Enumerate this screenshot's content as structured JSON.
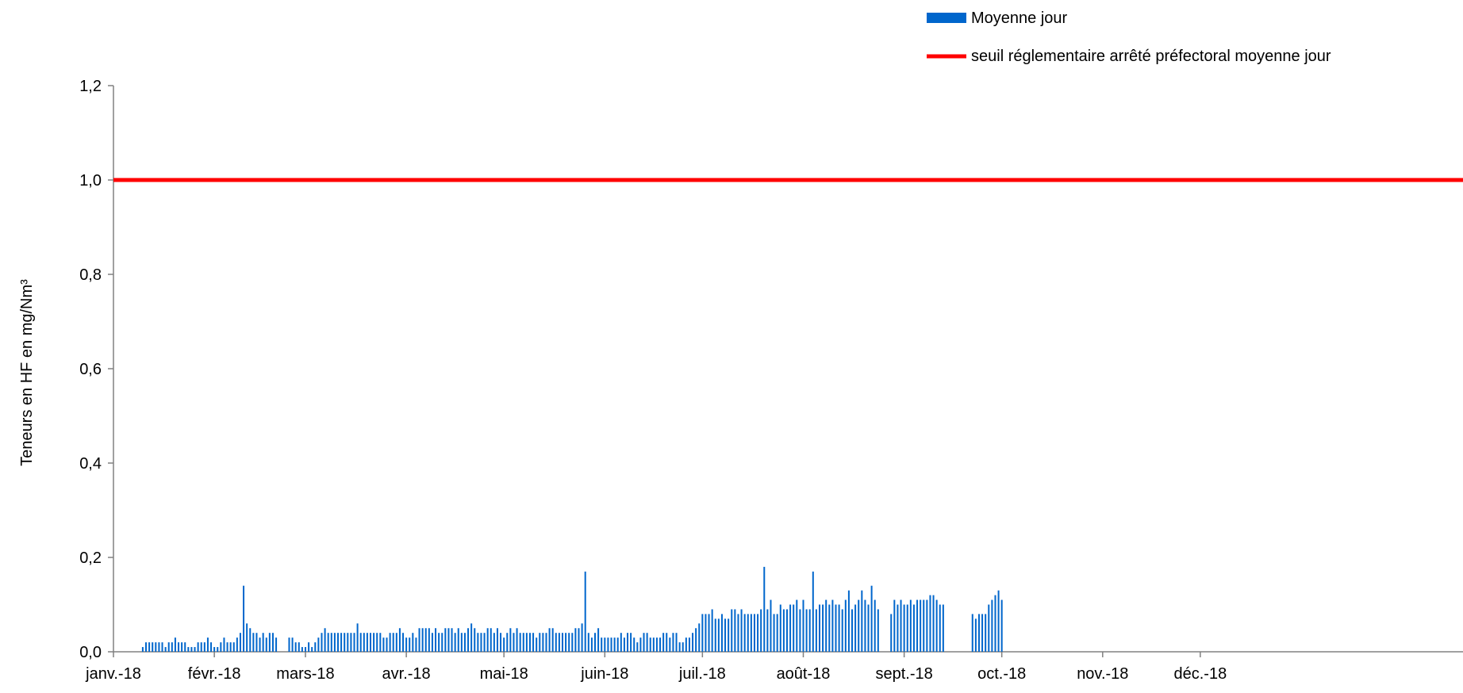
{
  "chart_data": {
    "type": "bar",
    "title": "",
    "xlabel": "",
    "ylabel": "Teneurs en HF en mg/Nm³",
    "ylim": [
      0,
      1.2
    ],
    "yticks": [
      "0,0",
      "0,2",
      "0,4",
      "0,6",
      "0,8",
      "1,0",
      "1,2"
    ],
    "grid": false,
    "legend_position": "top-right",
    "x_start": "2018-01-01",
    "x_end": "2018-12-31",
    "x_tick_labels": [
      {
        "date": "2018-01-01",
        "label": "janv.-18"
      },
      {
        "date": "2018-02-01",
        "label": "févr.-18"
      },
      {
        "date": "2018-03-01",
        "label": "mars-18"
      },
      {
        "date": "2018-04-01",
        "label": "avr.-18"
      },
      {
        "date": "2018-05-01",
        "label": "mai-18"
      },
      {
        "date": "2018-06-01",
        "label": "juin-18"
      },
      {
        "date": "2018-07-01",
        "label": "juil.-18"
      },
      {
        "date": "2018-08-01",
        "label": "août-18"
      },
      {
        "date": "2018-09-01",
        "label": "sept.-18"
      },
      {
        "date": "2018-10-01",
        "label": "oct.-18"
      },
      {
        "date": "2018-11-01",
        "label": "nov.-18"
      },
      {
        "date": "2018-12-01",
        "label": "déc.-18"
      }
    ],
    "series": [
      {
        "name": "Moyenne jour",
        "color": "#0066CC",
        "kind": "bar",
        "points": [
          [
            "2018-01-10",
            0.01
          ],
          [
            "2018-01-11",
            0.02
          ],
          [
            "2018-01-12",
            0.02
          ],
          [
            "2018-01-13",
            0.02
          ],
          [
            "2018-01-14",
            0.02
          ],
          [
            "2018-01-15",
            0.02
          ],
          [
            "2018-01-16",
            0.02
          ],
          [
            "2018-01-17",
            0.01
          ],
          [
            "2018-01-18",
            0.02
          ],
          [
            "2018-01-19",
            0.02
          ],
          [
            "2018-01-20",
            0.03
          ],
          [
            "2018-01-21",
            0.02
          ],
          [
            "2018-01-22",
            0.02
          ],
          [
            "2018-01-23",
            0.02
          ],
          [
            "2018-01-24",
            0.01
          ],
          [
            "2018-01-25",
            0.01
          ],
          [
            "2018-01-26",
            0.01
          ],
          [
            "2018-01-27",
            0.02
          ],
          [
            "2018-01-28",
            0.02
          ],
          [
            "2018-01-29",
            0.02
          ],
          [
            "2018-01-30",
            0.03
          ],
          [
            "2018-01-31",
            0.02
          ],
          [
            "2018-02-01",
            0.01
          ],
          [
            "2018-02-02",
            0.01
          ],
          [
            "2018-02-03",
            0.02
          ],
          [
            "2018-02-04",
            0.03
          ],
          [
            "2018-02-05",
            0.02
          ],
          [
            "2018-02-06",
            0.02
          ],
          [
            "2018-02-07",
            0.02
          ],
          [
            "2018-02-08",
            0.03
          ],
          [
            "2018-02-09",
            0.04
          ],
          [
            "2018-02-10",
            0.14
          ],
          [
            "2018-02-11",
            0.06
          ],
          [
            "2018-02-12",
            0.05
          ],
          [
            "2018-02-13",
            0.04
          ],
          [
            "2018-02-14",
            0.04
          ],
          [
            "2018-02-15",
            0.03
          ],
          [
            "2018-02-16",
            0.04
          ],
          [
            "2018-02-17",
            0.03
          ],
          [
            "2018-02-18",
            0.04
          ],
          [
            "2018-02-19",
            0.04
          ],
          [
            "2018-02-20",
            0.03
          ],
          [
            "2018-02-24",
            0.03
          ],
          [
            "2018-02-25",
            0.03
          ],
          [
            "2018-02-26",
            0.02
          ],
          [
            "2018-02-27",
            0.02
          ],
          [
            "2018-02-28",
            0.01
          ],
          [
            "2018-03-01",
            0.01
          ],
          [
            "2018-03-02",
            0.02
          ],
          [
            "2018-03-03",
            0.01
          ],
          [
            "2018-03-04",
            0.02
          ],
          [
            "2018-03-05",
            0.03
          ],
          [
            "2018-03-06",
            0.04
          ],
          [
            "2018-03-07",
            0.05
          ],
          [
            "2018-03-08",
            0.04
          ],
          [
            "2018-03-09",
            0.04
          ],
          [
            "2018-03-10",
            0.04
          ],
          [
            "2018-03-11",
            0.04
          ],
          [
            "2018-03-12",
            0.04
          ],
          [
            "2018-03-13",
            0.04
          ],
          [
            "2018-03-14",
            0.04
          ],
          [
            "2018-03-15",
            0.04
          ],
          [
            "2018-03-16",
            0.04
          ],
          [
            "2018-03-17",
            0.06
          ],
          [
            "2018-03-18",
            0.04
          ],
          [
            "2018-03-19",
            0.04
          ],
          [
            "2018-03-20",
            0.04
          ],
          [
            "2018-03-21",
            0.04
          ],
          [
            "2018-03-22",
            0.04
          ],
          [
            "2018-03-23",
            0.04
          ],
          [
            "2018-03-24",
            0.04
          ],
          [
            "2018-03-25",
            0.03
          ],
          [
            "2018-03-26",
            0.03
          ],
          [
            "2018-03-27",
            0.04
          ],
          [
            "2018-03-28",
            0.04
          ],
          [
            "2018-03-29",
            0.04
          ],
          [
            "2018-03-30",
            0.05
          ],
          [
            "2018-03-31",
            0.04
          ],
          [
            "2018-04-01",
            0.03
          ],
          [
            "2018-04-02",
            0.03
          ],
          [
            "2018-04-03",
            0.04
          ],
          [
            "2018-04-04",
            0.03
          ],
          [
            "2018-04-05",
            0.05
          ],
          [
            "2018-04-06",
            0.05
          ],
          [
            "2018-04-07",
            0.05
          ],
          [
            "2018-04-08",
            0.05
          ],
          [
            "2018-04-09",
            0.04
          ],
          [
            "2018-04-10",
            0.05
          ],
          [
            "2018-04-11",
            0.04
          ],
          [
            "2018-04-12",
            0.04
          ],
          [
            "2018-04-13",
            0.05
          ],
          [
            "2018-04-14",
            0.05
          ],
          [
            "2018-04-15",
            0.05
          ],
          [
            "2018-04-16",
            0.04
          ],
          [
            "2018-04-17",
            0.05
          ],
          [
            "2018-04-18",
            0.04
          ],
          [
            "2018-04-19",
            0.04
          ],
          [
            "2018-04-20",
            0.05
          ],
          [
            "2018-04-21",
            0.06
          ],
          [
            "2018-04-22",
            0.05
          ],
          [
            "2018-04-23",
            0.04
          ],
          [
            "2018-04-24",
            0.04
          ],
          [
            "2018-04-25",
            0.04
          ],
          [
            "2018-04-26",
            0.05
          ],
          [
            "2018-04-27",
            0.05
          ],
          [
            "2018-04-28",
            0.04
          ],
          [
            "2018-04-29",
            0.05
          ],
          [
            "2018-04-30",
            0.04
          ],
          [
            "2018-05-01",
            0.03
          ],
          [
            "2018-05-02",
            0.04
          ],
          [
            "2018-05-03",
            0.05
          ],
          [
            "2018-05-04",
            0.04
          ],
          [
            "2018-05-05",
            0.05
          ],
          [
            "2018-05-06",
            0.04
          ],
          [
            "2018-05-07",
            0.04
          ],
          [
            "2018-05-08",
            0.04
          ],
          [
            "2018-05-09",
            0.04
          ],
          [
            "2018-05-10",
            0.04
          ],
          [
            "2018-05-11",
            0.03
          ],
          [
            "2018-05-12",
            0.04
          ],
          [
            "2018-05-13",
            0.04
          ],
          [
            "2018-05-14",
            0.04
          ],
          [
            "2018-05-15",
            0.05
          ],
          [
            "2018-05-16",
            0.05
          ],
          [
            "2018-05-17",
            0.04
          ],
          [
            "2018-05-18",
            0.04
          ],
          [
            "2018-05-19",
            0.04
          ],
          [
            "2018-05-20",
            0.04
          ],
          [
            "2018-05-21",
            0.04
          ],
          [
            "2018-05-22",
            0.04
          ],
          [
            "2018-05-23",
            0.05
          ],
          [
            "2018-05-24",
            0.05
          ],
          [
            "2018-05-25",
            0.06
          ],
          [
            "2018-05-26",
            0.17
          ],
          [
            "2018-05-27",
            0.04
          ],
          [
            "2018-05-28",
            0.03
          ],
          [
            "2018-05-29",
            0.04
          ],
          [
            "2018-05-30",
            0.05
          ],
          [
            "2018-05-31",
            0.03
          ],
          [
            "2018-06-01",
            0.03
          ],
          [
            "2018-06-02",
            0.03
          ],
          [
            "2018-06-03",
            0.03
          ],
          [
            "2018-06-04",
            0.03
          ],
          [
            "2018-06-05",
            0.03
          ],
          [
            "2018-06-06",
            0.04
          ],
          [
            "2018-06-07",
            0.03
          ],
          [
            "2018-06-08",
            0.04
          ],
          [
            "2018-06-09",
            0.04
          ],
          [
            "2018-06-10",
            0.03
          ],
          [
            "2018-06-11",
            0.02
          ],
          [
            "2018-06-12",
            0.03
          ],
          [
            "2018-06-13",
            0.04
          ],
          [
            "2018-06-14",
            0.04
          ],
          [
            "2018-06-15",
            0.03
          ],
          [
            "2018-06-16",
            0.03
          ],
          [
            "2018-06-17",
            0.03
          ],
          [
            "2018-06-18",
            0.03
          ],
          [
            "2018-06-19",
            0.04
          ],
          [
            "2018-06-20",
            0.04
          ],
          [
            "2018-06-21",
            0.03
          ],
          [
            "2018-06-22",
            0.04
          ],
          [
            "2018-06-23",
            0.04
          ],
          [
            "2018-06-24",
            0.02
          ],
          [
            "2018-06-25",
            0.02
          ],
          [
            "2018-06-26",
            0.03
          ],
          [
            "2018-06-27",
            0.03
          ],
          [
            "2018-06-28",
            0.04
          ],
          [
            "2018-06-29",
            0.05
          ],
          [
            "2018-06-30",
            0.06
          ],
          [
            "2018-07-01",
            0.08
          ],
          [
            "2018-07-02",
            0.08
          ],
          [
            "2018-07-03",
            0.08
          ],
          [
            "2018-07-04",
            0.09
          ],
          [
            "2018-07-05",
            0.07
          ],
          [
            "2018-07-06",
            0.07
          ],
          [
            "2018-07-07",
            0.08
          ],
          [
            "2018-07-08",
            0.07
          ],
          [
            "2018-07-09",
            0.07
          ],
          [
            "2018-07-10",
            0.09
          ],
          [
            "2018-07-11",
            0.09
          ],
          [
            "2018-07-12",
            0.08
          ],
          [
            "2018-07-13",
            0.09
          ],
          [
            "2018-07-14",
            0.08
          ],
          [
            "2018-07-15",
            0.08
          ],
          [
            "2018-07-16",
            0.08
          ],
          [
            "2018-07-17",
            0.08
          ],
          [
            "2018-07-18",
            0.08
          ],
          [
            "2018-07-19",
            0.09
          ],
          [
            "2018-07-20",
            0.18
          ],
          [
            "2018-07-21",
            0.09
          ],
          [
            "2018-07-22",
            0.11
          ],
          [
            "2018-07-23",
            0.08
          ],
          [
            "2018-07-24",
            0.08
          ],
          [
            "2018-07-25",
            0.1
          ],
          [
            "2018-07-26",
            0.09
          ],
          [
            "2018-07-27",
            0.09
          ],
          [
            "2018-07-28",
            0.1
          ],
          [
            "2018-07-29",
            0.1
          ],
          [
            "2018-07-30",
            0.11
          ],
          [
            "2018-07-31",
            0.09
          ],
          [
            "2018-08-01",
            0.11
          ],
          [
            "2018-08-02",
            0.09
          ],
          [
            "2018-08-03",
            0.09
          ],
          [
            "2018-08-04",
            0.17
          ],
          [
            "2018-08-05",
            0.09
          ],
          [
            "2018-08-06",
            0.1
          ],
          [
            "2018-08-07",
            0.1
          ],
          [
            "2018-08-08",
            0.11
          ],
          [
            "2018-08-09",
            0.1
          ],
          [
            "2018-08-10",
            0.11
          ],
          [
            "2018-08-11",
            0.1
          ],
          [
            "2018-08-12",
            0.1
          ],
          [
            "2018-08-13",
            0.09
          ],
          [
            "2018-08-14",
            0.11
          ],
          [
            "2018-08-15",
            0.13
          ],
          [
            "2018-08-16",
            0.09
          ],
          [
            "2018-08-17",
            0.1
          ],
          [
            "2018-08-18",
            0.11
          ],
          [
            "2018-08-19",
            0.13
          ],
          [
            "2018-08-20",
            0.11
          ],
          [
            "2018-08-21",
            0.1
          ],
          [
            "2018-08-22",
            0.14
          ],
          [
            "2018-08-23",
            0.11
          ],
          [
            "2018-08-24",
            0.09
          ],
          [
            "2018-08-28",
            0.08
          ],
          [
            "2018-08-29",
            0.11
          ],
          [
            "2018-08-30",
            0.1
          ],
          [
            "2018-08-31",
            0.11
          ],
          [
            "2018-09-01",
            0.1
          ],
          [
            "2018-09-02",
            0.1
          ],
          [
            "2018-09-03",
            0.11
          ],
          [
            "2018-09-04",
            0.1
          ],
          [
            "2018-09-05",
            0.11
          ],
          [
            "2018-09-06",
            0.11
          ],
          [
            "2018-09-07",
            0.11
          ],
          [
            "2018-09-08",
            0.11
          ],
          [
            "2018-09-09",
            0.12
          ],
          [
            "2018-09-10",
            0.12
          ],
          [
            "2018-09-11",
            0.11
          ],
          [
            "2018-09-12",
            0.1
          ],
          [
            "2018-09-13",
            0.1
          ],
          [
            "2018-09-22",
            0.08
          ],
          [
            "2018-09-23",
            0.07
          ],
          [
            "2018-09-24",
            0.08
          ],
          [
            "2018-09-25",
            0.08
          ],
          [
            "2018-09-26",
            0.08
          ],
          [
            "2018-09-27",
            0.1
          ],
          [
            "2018-09-28",
            0.11
          ],
          [
            "2018-09-29",
            0.12
          ],
          [
            "2018-09-30",
            0.13
          ],
          [
            "2018-10-01",
            0.11
          ]
        ]
      },
      {
        "name": "seuil réglementaire arrêté préfectoral moyenne jour",
        "color": "#FF0000",
        "kind": "line",
        "value": 1.0
      }
    ]
  }
}
